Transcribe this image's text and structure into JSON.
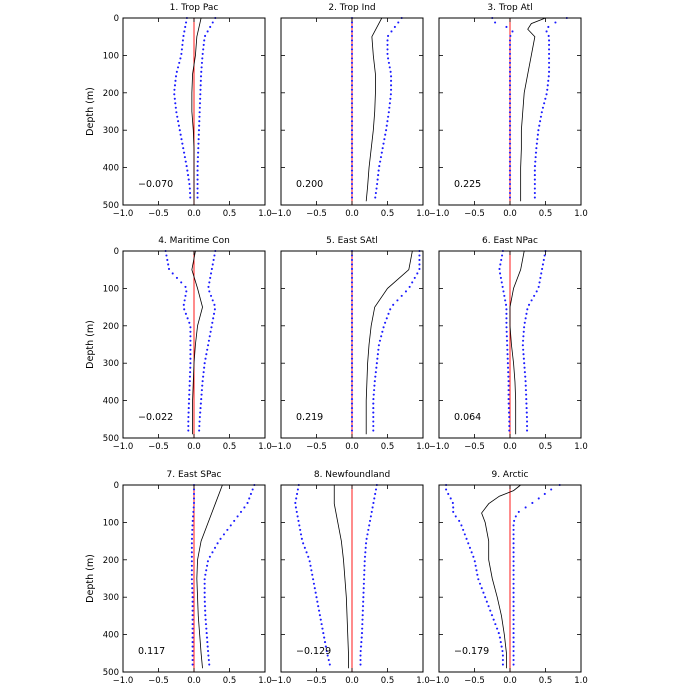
{
  "figure": {
    "ylabel": "Depth (m)",
    "colors": {
      "mean": "#000000",
      "bounds": "#1a1aff",
      "zero": "#ff0000"
    }
  },
  "chart_data": [
    {
      "type": "line",
      "title": "1. Trop Pac",
      "correlation": "−0.070",
      "xlim": [
        -1,
        1
      ],
      "ylim": [
        500,
        0
      ],
      "xticks": [
        -1.0,
        -0.5,
        0.0,
        0.5,
        1.0
      ],
      "xticklabels": [
        "−1.0",
        "−0.5",
        "0.0",
        "0.5",
        "1.0"
      ],
      "yticks": [
        0,
        100,
        200,
        300,
        400,
        500
      ],
      "yticklabels": [
        "0",
        "100",
        "200",
        "300",
        "400",
        "500"
      ],
      "depth": [
        0,
        50,
        100,
        150,
        200,
        250,
        300,
        350,
        400,
        450,
        490
      ],
      "mean": [
        0.1,
        0.04,
        0.02,
        -0.02,
        -0.03,
        -0.03,
        -0.01,
        0.0,
        0.0,
        0.0,
        0.0
      ],
      "lower": [
        -0.1,
        -0.15,
        -0.18,
        -0.25,
        -0.28,
        -0.25,
        -0.2,
        -0.15,
        -0.1,
        -0.06,
        -0.05
      ],
      "upper": [
        0.3,
        0.15,
        0.12,
        0.1,
        0.09,
        0.08,
        0.07,
        0.06,
        0.05,
        0.05,
        0.05
      ]
    },
    {
      "type": "line",
      "title": "2. Trop Ind",
      "correlation": "0.200",
      "xlim": [
        -1,
        1
      ],
      "ylim": [
        500,
        0
      ],
      "xticks": [
        -1.0,
        -0.5,
        0.0,
        0.5,
        1.0
      ],
      "xticklabels": [
        "−1.0",
        "−0.5",
        "0.0",
        "0.5",
        "1.0"
      ],
      "yticks": [
        0,
        100,
        200,
        300,
        400,
        500
      ],
      "yticklabels": [
        "0",
        "100",
        "200",
        "300",
        "400",
        "500"
      ],
      "depth": [
        0,
        50,
        100,
        150,
        200,
        250,
        300,
        350,
        400,
        450,
        490
      ],
      "mean": [
        0.42,
        0.28,
        0.3,
        0.33,
        0.33,
        0.32,
        0.3,
        0.27,
        0.24,
        0.22,
        0.2
      ],
      "lower": [
        0.0,
        0.0,
        0.0,
        0.0,
        0.0,
        0.0,
        0.0,
        0.0,
        0.0,
        0.0,
        0.0
      ],
      "upper": [
        0.7,
        0.5,
        0.5,
        0.55,
        0.55,
        0.52,
        0.48,
        0.43,
        0.38,
        0.35,
        0.32
      ]
    },
    {
      "type": "line",
      "title": "3. Trop Atl",
      "correlation": "0.225",
      "xlim": [
        -1,
        1
      ],
      "ylim": [
        500,
        0
      ],
      "xticks": [
        -1.0,
        -0.5,
        0.0,
        0.5,
        1.0
      ],
      "xticklabels": [
        "−1.0",
        "−0.5",
        "0.0",
        "0.5",
        "1.0"
      ],
      "yticks": [
        0,
        100,
        200,
        300,
        400,
        500
      ],
      "yticklabels": [
        "0",
        "100",
        "200",
        "300",
        "400",
        "500"
      ],
      "depth": [
        0,
        15,
        30,
        50,
        100,
        150,
        200,
        250,
        300,
        350,
        400,
        450,
        490
      ],
      "mean": [
        0.5,
        0.3,
        0.25,
        0.35,
        0.3,
        0.25,
        0.2,
        0.18,
        0.16,
        0.16,
        0.15,
        0.15,
        0.15
      ],
      "lower": [
        -0.25,
        -0.2,
        0.05,
        0.0,
        0.0,
        0.0,
        0.0,
        0.0,
        0.0,
        0.0,
        0.0,
        0.0,
        0.0
      ],
      "upper": [
        0.8,
        0.6,
        0.5,
        0.55,
        0.55,
        0.55,
        0.52,
        0.45,
        0.4,
        0.37,
        0.35,
        0.35,
        0.35
      ]
    },
    {
      "type": "line",
      "title": "4. Maritime Con",
      "correlation": "−0.022",
      "xlim": [
        -1,
        1
      ],
      "ylim": [
        500,
        0
      ],
      "xticks": [
        -1.0,
        -0.5,
        0.0,
        0.5,
        1.0
      ],
      "xticklabels": [
        "−1.0",
        "−0.5",
        "0.0",
        "0.5",
        "1.0"
      ],
      "yticks": [
        0,
        100,
        200,
        300,
        400,
        500
      ],
      "yticklabels": [
        "0",
        "100",
        "200",
        "300",
        "400",
        "500"
      ],
      "depth": [
        0,
        50,
        100,
        150,
        200,
        250,
        300,
        350,
        400,
        450,
        490
      ],
      "mean": [
        0.02,
        -0.03,
        0.05,
        0.12,
        0.05,
        0.02,
        0.0,
        -0.01,
        -0.02,
        -0.02,
        -0.02
      ],
      "lower": [
        -0.4,
        -0.35,
        -0.1,
        -0.15,
        -0.05,
        -0.05,
        -0.05,
        -0.06,
        -0.07,
        -0.08,
        -0.08
      ],
      "upper": [
        0.3,
        0.25,
        0.2,
        0.3,
        0.25,
        0.2,
        0.15,
        0.12,
        0.1,
        0.08,
        0.07
      ]
    },
    {
      "type": "line",
      "title": "5. East SAtl",
      "correlation": "0.219",
      "xlim": [
        -1,
        1
      ],
      "ylim": [
        500,
        0
      ],
      "xticks": [
        -1.0,
        -0.5,
        0.0,
        0.5,
        1.0
      ],
      "xticklabels": [
        "−1.0",
        "−0.5",
        "0.0",
        "0.5",
        "1.0"
      ],
      "yticks": [
        0,
        100,
        200,
        300,
        400,
        500
      ],
      "yticklabels": [
        "0",
        "100",
        "200",
        "300",
        "400",
        "500"
      ],
      "depth": [
        0,
        50,
        100,
        150,
        200,
        250,
        300,
        350,
        400,
        450,
        490
      ],
      "mean": [
        0.85,
        0.8,
        0.5,
        0.32,
        0.27,
        0.24,
        0.22,
        0.21,
        0.2,
        0.2,
        0.2
      ],
      "lower": [
        0.0,
        0.0,
        0.0,
        0.0,
        0.0,
        0.0,
        0.0,
        0.0,
        0.0,
        0.0,
        0.0
      ],
      "upper": [
        0.95,
        0.95,
        0.8,
        0.55,
        0.45,
        0.38,
        0.35,
        0.32,
        0.3,
        0.3,
        0.3
      ]
    },
    {
      "type": "line",
      "title": "6. East NPac",
      "correlation": "0.064",
      "xlim": [
        -1,
        1
      ],
      "ylim": [
        500,
        0
      ],
      "xticks": [
        -1.0,
        -0.5,
        0.0,
        0.5,
        1.0
      ],
      "xticklabels": [
        "−1.0",
        "−0.5",
        "0.0",
        "0.5",
        "1.0"
      ],
      "yticks": [
        0,
        100,
        200,
        300,
        400,
        500
      ],
      "yticklabels": [
        "0",
        "100",
        "200",
        "300",
        "400",
        "500"
      ],
      "depth": [
        0,
        50,
        100,
        150,
        200,
        250,
        300,
        350,
        400,
        450,
        490
      ],
      "mean": [
        0.2,
        0.15,
        0.05,
        0.0,
        0.0,
        0.02,
        0.05,
        0.07,
        0.08,
        0.08,
        0.08
      ],
      "lower": [
        -0.1,
        -0.15,
        -0.1,
        -0.05,
        -0.05,
        -0.04,
        -0.03,
        -0.02,
        -0.02,
        -0.01,
        -0.01
      ],
      "upper": [
        0.5,
        0.45,
        0.4,
        0.25,
        0.2,
        0.18,
        0.2,
        0.22,
        0.23,
        0.24,
        0.24
      ]
    },
    {
      "type": "line",
      "title": "7. East SPac",
      "correlation": "0.117",
      "xlim": [
        -1,
        1
      ],
      "ylim": [
        500,
        0
      ],
      "xticks": [
        -1.0,
        -0.5,
        0.0,
        0.5,
        1.0
      ],
      "xticklabels": [
        "−1.0",
        "−0.5",
        "0.0",
        "0.5",
        "1.0"
      ],
      "yticks": [
        0,
        100,
        200,
        300,
        400,
        500
      ],
      "yticklabels": [
        "0",
        "100",
        "200",
        "300",
        "400",
        "500"
      ],
      "depth": [
        0,
        50,
        100,
        150,
        200,
        250,
        300,
        350,
        400,
        450,
        490
      ],
      "mean": [
        0.4,
        0.3,
        0.2,
        0.1,
        0.05,
        0.04,
        0.05,
        0.06,
        0.08,
        0.1,
        0.12
      ],
      "lower": [
        0.0,
        0.0,
        -0.02,
        -0.03,
        -0.03,
        -0.03,
        -0.02,
        -0.02,
        -0.02,
        -0.02,
        -0.02
      ],
      "upper": [
        0.85,
        0.75,
        0.55,
        0.35,
        0.2,
        0.15,
        0.15,
        0.16,
        0.18,
        0.2,
        0.22
      ]
    },
    {
      "type": "line",
      "title": "8. Newfoundland",
      "correlation": "−0.129",
      "xlim": [
        -1,
        1
      ],
      "ylim": [
        500,
        0
      ],
      "xticks": [
        -1.0,
        -0.5,
        0.0,
        0.5,
        1.0
      ],
      "xticklabels": [
        "−1.0",
        "−0.5",
        "0.0",
        "0.5",
        "1.0"
      ],
      "yticks": [
        0,
        100,
        200,
        300,
        400,
        500
      ],
      "yticklabels": [
        "0",
        "100",
        "200",
        "300",
        "400",
        "500"
      ],
      "depth": [
        0,
        50,
        100,
        150,
        200,
        250,
        300,
        350,
        400,
        450,
        490
      ],
      "mean": [
        -0.25,
        -0.25,
        -0.2,
        -0.15,
        -0.12,
        -0.1,
        -0.08,
        -0.07,
        -0.06,
        -0.05,
        -0.05
      ],
      "lower": [
        -0.75,
        -0.8,
        -0.75,
        -0.7,
        -0.6,
        -0.55,
        -0.5,
        -0.45,
        -0.4,
        -0.35,
        -0.3
      ],
      "upper": [
        0.35,
        0.3,
        0.25,
        0.2,
        0.18,
        0.17,
        0.16,
        0.15,
        0.14,
        0.12,
        0.12
      ]
    },
    {
      "type": "line",
      "title": "9. Arctic",
      "correlation": "−0.179",
      "xlim": [
        -1,
        1
      ],
      "ylim": [
        500,
        0
      ],
      "xticks": [
        -1.0,
        -0.5,
        0.0,
        0.5,
        1.0
      ],
      "xticklabels": [
        "−1.0",
        "−0.5",
        "0.0",
        "0.5",
        "1.0"
      ],
      "yticks": [
        0,
        100,
        200,
        300,
        400,
        500
      ],
      "yticklabels": [
        "0",
        "100",
        "200",
        "300",
        "400",
        "500"
      ],
      "depth": [
        0,
        15,
        30,
        50,
        75,
        100,
        150,
        200,
        250,
        300,
        350,
        400,
        450,
        490
      ],
      "mean": [
        0.15,
        0.05,
        -0.15,
        -0.3,
        -0.4,
        -0.35,
        -0.3,
        -0.3,
        -0.25,
        -0.18,
        -0.12,
        -0.08,
        -0.05,
        -0.05
      ],
      "lower": [
        -0.9,
        -0.9,
        -0.85,
        -0.8,
        -0.8,
        -0.7,
        -0.6,
        -0.5,
        -0.45,
        -0.35,
        -0.25,
        -0.15,
        -0.1,
        -0.1
      ],
      "upper": [
        0.7,
        0.55,
        0.45,
        0.3,
        0.1,
        0.05,
        0.05,
        0.05,
        0.05,
        0.05,
        0.05,
        0.05,
        0.05,
        0.05
      ]
    }
  ]
}
